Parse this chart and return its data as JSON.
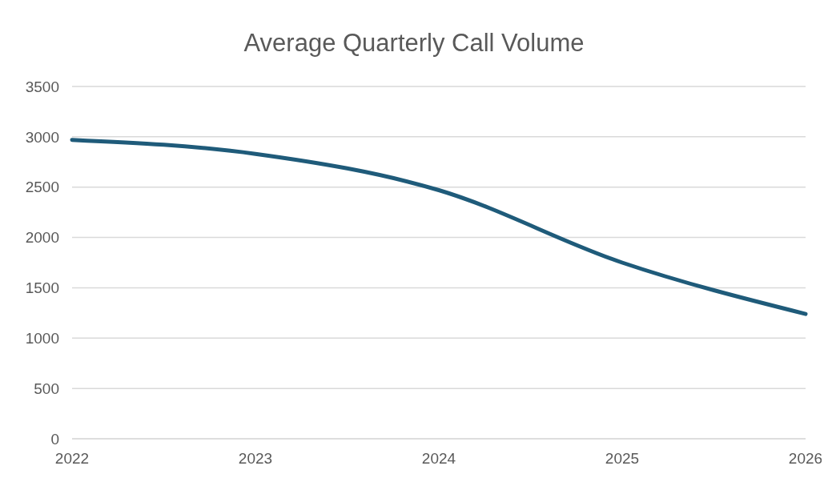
{
  "chart_data": {
    "type": "line",
    "title": "Average Quarterly Call Volume",
    "categories": [
      "2022",
      "2023",
      "2024",
      "2025",
      "2026"
    ],
    "series": [
      {
        "color": "#1f5b7a",
        "values": [
          2970,
          2830,
          2470,
          1750,
          1240
        ]
      }
    ],
    "ylim": [
      0,
      3500
    ],
    "yticks": [
      0,
      500,
      1000,
      1500,
      2000,
      2500,
      3000,
      3500
    ],
    "grid": "y",
    "legend": false
  }
}
